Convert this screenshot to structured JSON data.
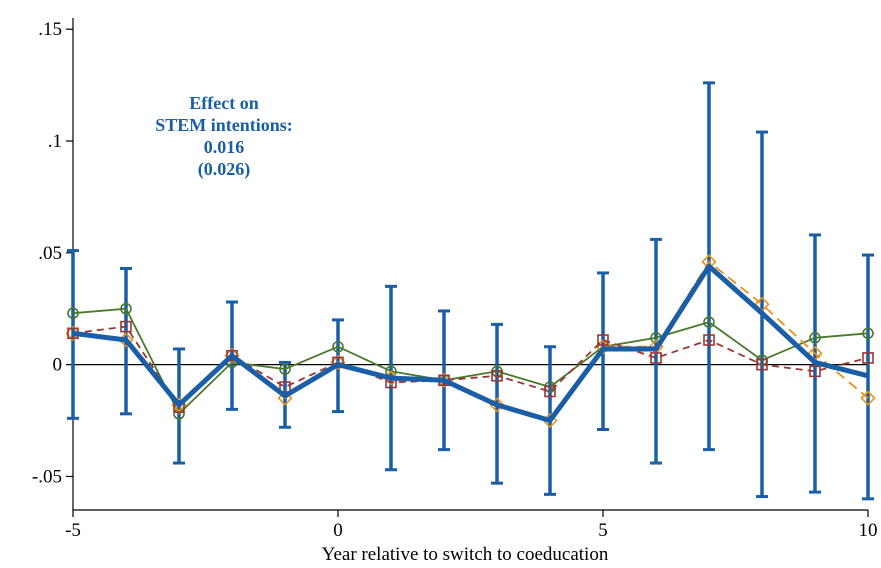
{
  "chart_data": {
    "type": "line",
    "title": "",
    "xlabel": "Year relative to switch to coeducation",
    "ylabel": "",
    "xlim": [
      -5,
      10
    ],
    "ylim": [
      -0.065,
      0.155
    ],
    "x_ticks": [
      -5,
      0,
      5,
      10
    ],
    "x_tick_labels": [
      "-5",
      "0",
      "5",
      "10"
    ],
    "y_ticks": [
      -0.05,
      0,
      0.05,
      0.1,
      0.15
    ],
    "y_tick_labels": [
      "-.05",
      "0",
      ".05",
      ".1",
      ".15"
    ],
    "grid": false,
    "legend": "none",
    "x": [
      -5,
      -4,
      -3,
      -2,
      -1,
      0,
      1,
      2,
      3,
      4,
      5,
      6,
      7,
      8,
      9,
      10
    ],
    "main_series": {
      "color": "#1a5ea8",
      "values": [
        0.014,
        0.011,
        -0.018,
        0.004,
        -0.014,
        0.0,
        -0.006,
        -0.007,
        -0.018,
        -0.025,
        0.007,
        0.007,
        0.044,
        0.023,
        0.001,
        -0.005
      ],
      "ci_low": [
        -0.024,
        -0.022,
        -0.044,
        -0.02,
        -0.028,
        -0.021,
        -0.047,
        -0.038,
        -0.053,
        -0.058,
        -0.029,
        -0.044,
        -0.038,
        -0.059,
        -0.057,
        -0.06
      ],
      "ci_high": [
        0.051,
        0.043,
        0.007,
        0.028,
        0.001,
        0.02,
        0.035,
        0.024,
        0.018,
        0.008,
        0.041,
        0.056,
        0.126,
        0.104,
        0.058,
        0.049
      ]
    },
    "series": [
      {
        "color": "#4a7a2a",
        "marker": "circle",
        "values": [
          0.023,
          0.025,
          -0.022,
          0.001,
          -0.002,
          0.008,
          -0.003,
          -0.007,
          -0.003,
          -0.01,
          0.008,
          0.012,
          0.019,
          0.002,
          0.012,
          0.014
        ]
      },
      {
        "color": "#e8901a",
        "marker": "diamond",
        "values": [
          0.014,
          0.011,
          -0.018,
          0.004,
          -0.015,
          0.001,
          -0.006,
          -0.007,
          -0.018,
          -0.025,
          0.008,
          0.008,
          0.046,
          0.027,
          0.005,
          -0.015
        ]
      },
      {
        "color": "#9c3535",
        "marker": "square",
        "values": [
          0.014,
          0.017,
          -0.019,
          0.004,
          -0.01,
          0.001,
          -0.008,
          -0.007,
          -0.005,
          -0.012,
          0.011,
          0.003,
          0.011,
          0.0,
          -0.003,
          0.003
        ]
      }
    ],
    "annotation": {
      "line1": "Effect on",
      "line2": "STEM intentions:",
      "line3": "0.016",
      "line4": "(0.026)",
      "color": "#1a5ea8"
    }
  }
}
